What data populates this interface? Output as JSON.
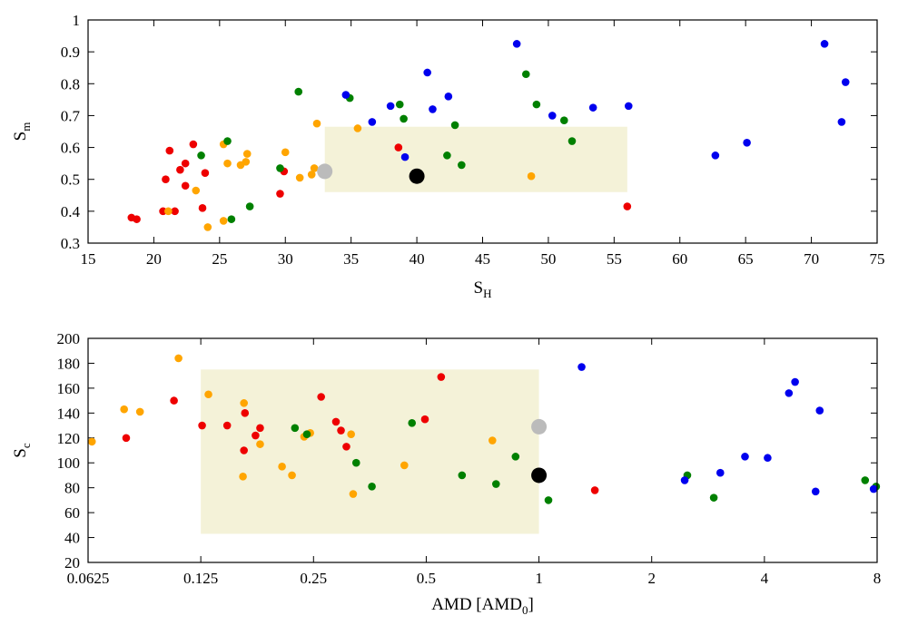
{
  "colors": {
    "red": "#ee0000",
    "orange": "#ffa500",
    "green": "#008000",
    "blue": "#0000ee",
    "black": "#000000",
    "gray": "#bbbbbb",
    "shade": "#f4f2d8"
  },
  "chart_data": [
    {
      "type": "scatter",
      "xlabel": "S",
      "xlabel_sub": "H",
      "ylabel": "S",
      "ylabel_sub": "m",
      "xlim": [
        15,
        75
      ],
      "ylim": [
        0.3,
        1.0
      ],
      "xscale": "linear",
      "xticks": [
        15,
        20,
        25,
        30,
        35,
        40,
        45,
        50,
        55,
        60,
        65,
        70,
        75
      ],
      "xtick_labels": [
        "15",
        "20",
        "25",
        "30",
        "35",
        "40",
        "45",
        "50",
        "55",
        "60",
        "65",
        "70",
        "75"
      ],
      "yticks": [
        0.3,
        0.4,
        0.5,
        0.6,
        0.7,
        0.8,
        0.9,
        1.0
      ],
      "ytick_labels": [
        "0.3",
        "0.4",
        "0.5",
        "0.6",
        "0.7",
        "0.8",
        "0.9",
        "1"
      ],
      "shaded_region": {
        "x": [
          33,
          56
        ],
        "y": [
          0.46,
          0.665
        ]
      },
      "series": [
        {
          "color_key": "red",
          "points": [
            [
              18.3,
              0.38
            ],
            [
              18.7,
              0.375
            ],
            [
              20.7,
              0.4
            ],
            [
              20.9,
              0.5
            ],
            [
              21.2,
              0.59
            ],
            [
              21.6,
              0.4
            ],
            [
              22.0,
              0.53
            ],
            [
              22.4,
              0.48
            ],
            [
              22.4,
              0.55
            ],
            [
              23.0,
              0.61
            ],
            [
              23.7,
              0.41
            ],
            [
              23.9,
              0.52
            ],
            [
              29.6,
              0.455
            ],
            [
              29.9,
              0.525
            ],
            [
              38.6,
              0.6
            ],
            [
              56.0,
              0.415
            ]
          ]
        },
        {
          "color_key": "orange",
          "points": [
            [
              21.1,
              0.4
            ],
            [
              23.2,
              0.465
            ],
            [
              24.1,
              0.35
            ],
            [
              25.3,
              0.37
            ],
            [
              25.3,
              0.61
            ],
            [
              25.6,
              0.55
            ],
            [
              26.6,
              0.545
            ],
            [
              27.0,
              0.555
            ],
            [
              27.1,
              0.58
            ],
            [
              30.0,
              0.585
            ],
            [
              31.1,
              0.505
            ],
            [
              32.0,
              0.515
            ],
            [
              32.2,
              0.535
            ],
            [
              32.4,
              0.675
            ],
            [
              35.5,
              0.66
            ],
            [
              48.7,
              0.51
            ]
          ]
        },
        {
          "color_key": "green",
          "points": [
            [
              23.6,
              0.575
            ],
            [
              25.6,
              0.62
            ],
            [
              25.9,
              0.375
            ],
            [
              27.3,
              0.415
            ],
            [
              29.6,
              0.535
            ],
            [
              31.0,
              0.775
            ],
            [
              34.9,
              0.755
            ],
            [
              38.7,
              0.735
            ],
            [
              39.0,
              0.69
            ],
            [
              42.3,
              0.575
            ],
            [
              42.9,
              0.67
            ],
            [
              43.4,
              0.545
            ],
            [
              48.3,
              0.83
            ],
            [
              49.1,
              0.735
            ],
            [
              51.2,
              0.685
            ],
            [
              51.8,
              0.62
            ]
          ]
        },
        {
          "color_key": "blue",
          "points": [
            [
              34.6,
              0.765
            ],
            [
              36.6,
              0.68
            ],
            [
              38.0,
              0.73
            ],
            [
              39.1,
              0.57
            ],
            [
              40.8,
              0.835
            ],
            [
              41.2,
              0.72
            ],
            [
              42.4,
              0.76
            ],
            [
              47.6,
              0.925
            ],
            [
              50.3,
              0.7
            ],
            [
              53.4,
              0.725
            ],
            [
              56.1,
              0.73
            ],
            [
              62.7,
              0.575
            ],
            [
              65.1,
              0.615
            ],
            [
              71.0,
              0.925
            ],
            [
              72.3,
              0.68
            ],
            [
              72.6,
              0.805
            ]
          ]
        }
      ],
      "highlights": [
        {
          "color_key": "gray",
          "point": [
            33.0,
            0.525
          ]
        },
        {
          "color_key": "black",
          "point": [
            40.0,
            0.51
          ]
        }
      ]
    },
    {
      "type": "scatter",
      "xlabel": "AMD [AMD",
      "xlabel_sub": "0",
      "xlabel_suffix": "]",
      "ylabel": "S",
      "ylabel_sub": "c",
      "xlim": [
        0.0625,
        8
      ],
      "ylim": [
        20,
        200
      ],
      "xscale": "log2",
      "xticks": [
        0.0625,
        0.125,
        0.25,
        0.5,
        1,
        2,
        4,
        8
      ],
      "xtick_labels": [
        "0.0625",
        "0.125",
        "0.25",
        "0.5",
        "1",
        "2",
        "4",
        "8"
      ],
      "yticks": [
        20,
        40,
        60,
        80,
        100,
        120,
        140,
        160,
        180,
        200
      ],
      "ytick_labels": [
        "20",
        "40",
        "60",
        "80",
        "100",
        "120",
        "140",
        "160",
        "180",
        "200"
      ],
      "shaded_region": {
        "x": [
          0.125,
          1
        ],
        "y": [
          43,
          175
        ]
      },
      "series": [
        {
          "color_key": "red",
          "points": [
            [
              0.079,
              120
            ],
            [
              0.106,
              150
            ],
            [
              0.126,
              130
            ],
            [
              0.147,
              130
            ],
            [
              0.163,
              110
            ],
            [
              0.164,
              140
            ],
            [
              0.175,
              122
            ],
            [
              0.18,
              128
            ],
            [
              0.262,
              153
            ],
            [
              0.287,
              133
            ],
            [
              0.296,
              126
            ],
            [
              0.306,
              113
            ],
            [
              0.496,
              135
            ],
            [
              0.548,
              169
            ],
            [
              1.41,
              78
            ]
          ]
        },
        {
          "color_key": "orange",
          "points": [
            [
              0.064,
              117
            ],
            [
              0.078,
              143
            ],
            [
              0.086,
              141
            ],
            [
              0.109,
              184
            ],
            [
              0.131,
              155
            ],
            [
              0.162,
              89
            ],
            [
              0.163,
              148
            ],
            [
              0.18,
              115
            ],
            [
              0.206,
              97
            ],
            [
              0.219,
              90
            ],
            [
              0.236,
              121
            ],
            [
              0.245,
              124
            ],
            [
              0.315,
              123
            ],
            [
              0.319,
              75
            ],
            [
              0.437,
              98
            ],
            [
              0.751,
              118
            ]
          ]
        },
        {
          "color_key": "green",
          "points": [
            [
              0.223,
              128
            ],
            [
              0.24,
              123
            ],
            [
              0.325,
              100
            ],
            [
              0.358,
              81
            ],
            [
              0.458,
              132
            ],
            [
              0.623,
              90
            ],
            [
              0.768,
              83
            ],
            [
              0.866,
              105
            ],
            [
              1.06,
              70
            ],
            [
              2.49,
              90
            ],
            [
              2.93,
              72
            ],
            [
              7.43,
              86
            ],
            [
              7.95,
              81
            ]
          ]
        },
        {
          "color_key": "blue",
          "points": [
            [
              1.3,
              177
            ],
            [
              2.45,
              86
            ],
            [
              3.05,
              92
            ],
            [
              3.55,
              105
            ],
            [
              4.08,
              104
            ],
            [
              4.65,
              156
            ],
            [
              4.83,
              165
            ],
            [
              5.48,
              77
            ],
            [
              5.62,
              142
            ],
            [
              7.83,
              79
            ]
          ]
        }
      ],
      "highlights": [
        {
          "color_key": "gray",
          "point": [
            1.0,
            129
          ]
        },
        {
          "color_key": "black",
          "point": [
            1.0,
            90
          ]
        }
      ]
    }
  ]
}
